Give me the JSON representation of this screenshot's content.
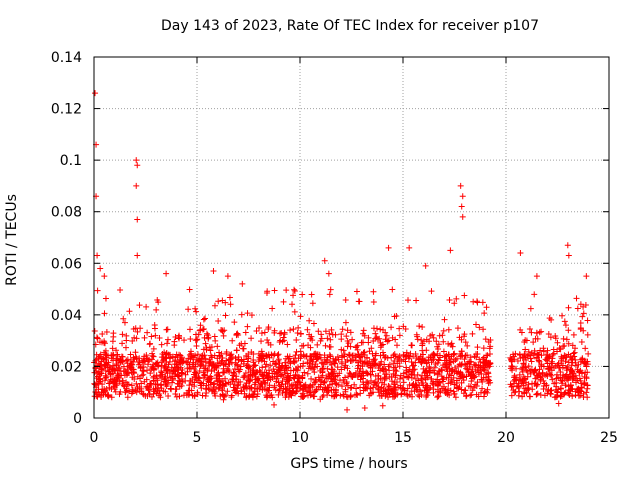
{
  "chart_data": {
    "type": "scatter",
    "title": "Day 143 of 2023, Rate Of TEC Index for receiver p107",
    "xlabel": "GPS time / hours",
    "ylabel": "ROTI / TECUs",
    "xlim": [
      0,
      25
    ],
    "ylim": [
      0,
      0.14
    ],
    "xticks": [
      0,
      5,
      10,
      15,
      20,
      25
    ],
    "yticks": [
      0,
      0.02,
      0.04,
      0.06,
      0.08,
      0.1,
      0.12,
      0.14
    ],
    "ytick_labels": [
      "0",
      "0.02",
      "0.04",
      "0.06",
      "0.08",
      "0.1",
      "0.12",
      "0.14"
    ],
    "grid": true,
    "marker": "+",
    "series_color": "#ff0000",
    "data_gap_hours": [
      19.25,
      20.2
    ],
    "series": [
      {
        "name": "ROTI",
        "baseline_range": [
          0.008,
          0.025
        ],
        "notable_points": [
          {
            "x": 0.05,
            "y": 0.126
          },
          {
            "x": 0.1,
            "y": 0.106
          },
          {
            "x": 0.1,
            "y": 0.086
          },
          {
            "x": 0.15,
            "y": 0.063
          },
          {
            "x": 0.3,
            "y": 0.058
          },
          {
            "x": 0.5,
            "y": 0.055
          },
          {
            "x": 2.05,
            "y": 0.1
          },
          {
            "x": 2.1,
            "y": 0.098
          },
          {
            "x": 2.05,
            "y": 0.09
          },
          {
            "x": 2.1,
            "y": 0.077
          },
          {
            "x": 2.1,
            "y": 0.063
          },
          {
            "x": 3.5,
            "y": 0.056
          },
          {
            "x": 5.8,
            "y": 0.057
          },
          {
            "x": 6.5,
            "y": 0.055
          },
          {
            "x": 7.2,
            "y": 0.052
          },
          {
            "x": 11.2,
            "y": 0.061
          },
          {
            "x": 11.4,
            "y": 0.056
          },
          {
            "x": 14.3,
            "y": 0.066
          },
          {
            "x": 15.3,
            "y": 0.066
          },
          {
            "x": 16.1,
            "y": 0.059
          },
          {
            "x": 17.8,
            "y": 0.09
          },
          {
            "x": 17.9,
            "y": 0.086
          },
          {
            "x": 17.85,
            "y": 0.082
          },
          {
            "x": 17.9,
            "y": 0.078
          },
          {
            "x": 17.3,
            "y": 0.065
          },
          {
            "x": 20.7,
            "y": 0.064
          },
          {
            "x": 21.5,
            "y": 0.055
          },
          {
            "x": 23.0,
            "y": 0.067
          },
          {
            "x": 23.05,
            "y": 0.063
          },
          {
            "x": 23.9,
            "y": 0.055
          }
        ]
      }
    ]
  }
}
